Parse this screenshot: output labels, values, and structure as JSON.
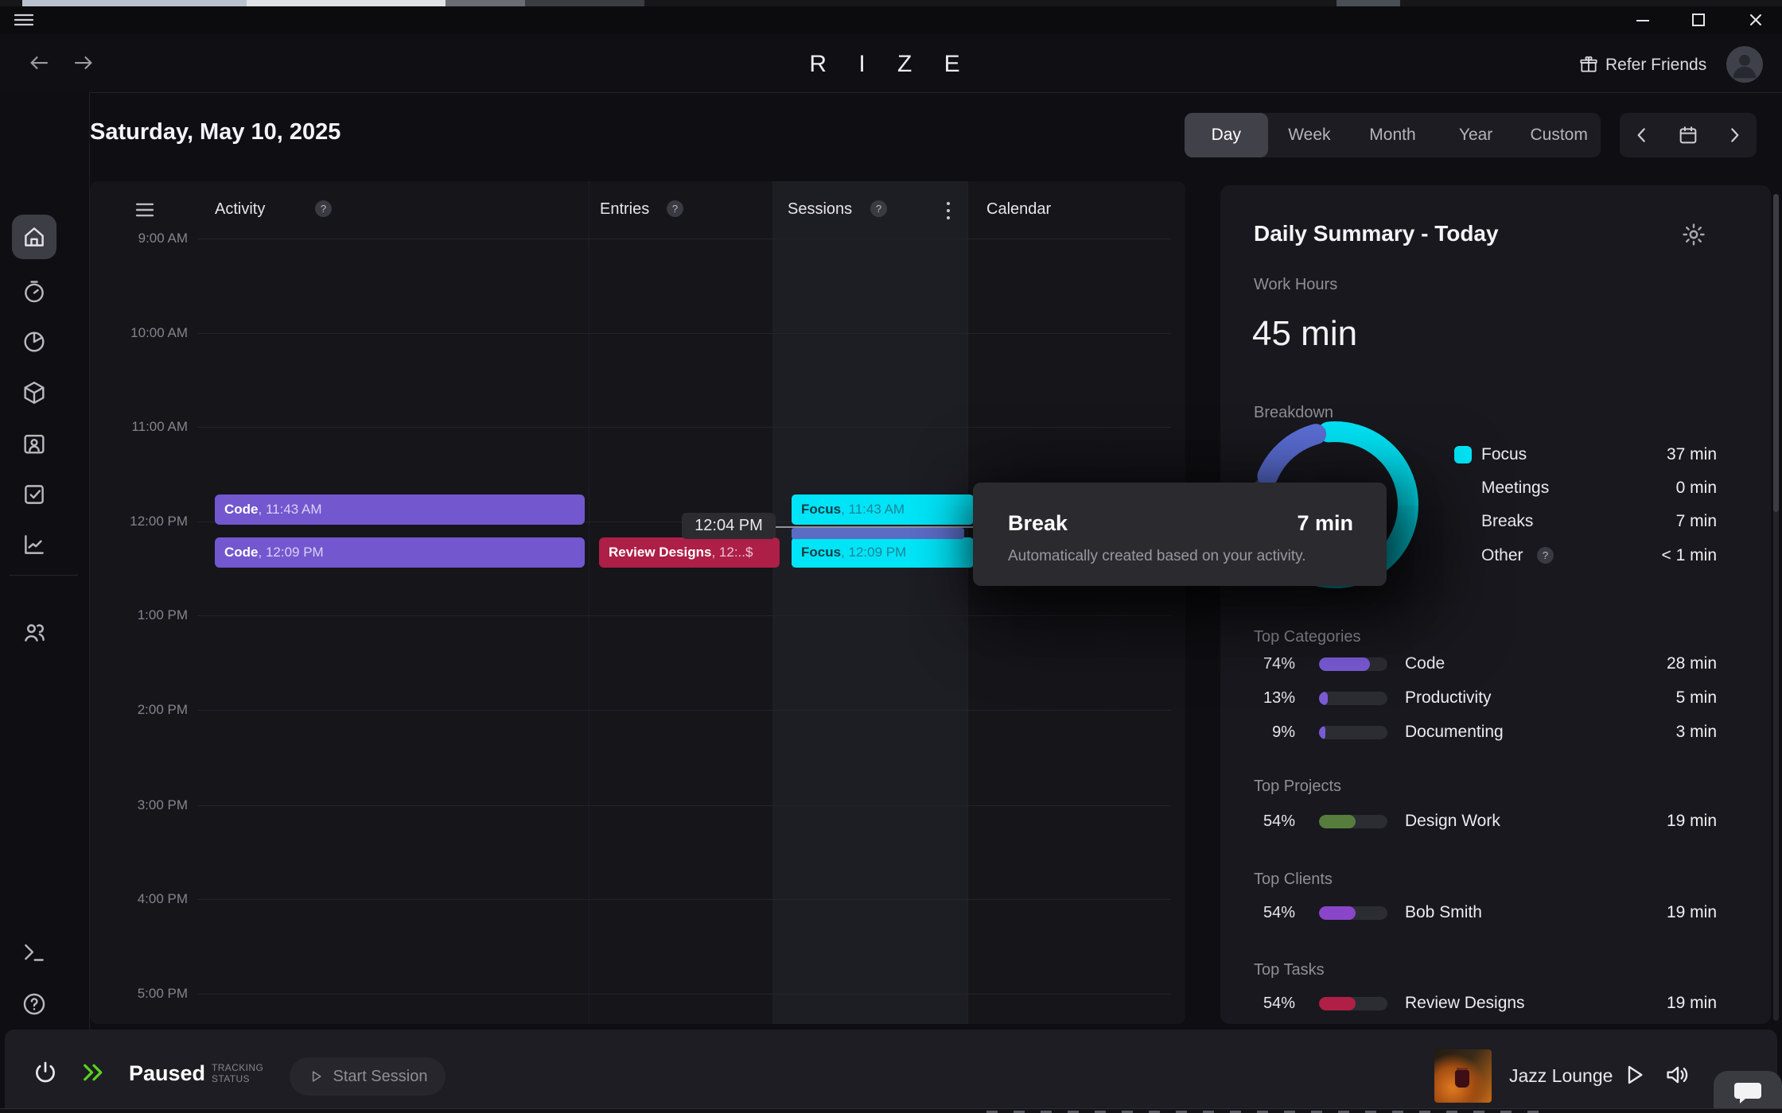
{
  "header": {
    "logo": "R I Z E",
    "refer_friends": "Refer Friends"
  },
  "toolbar": {
    "date": "Saturday, May 10, 2025",
    "tabs": [
      "Day",
      "Week",
      "Month",
      "Year",
      "Custom"
    ],
    "active_tab": "Day"
  },
  "sidebar": {
    "icons": [
      "home",
      "timer",
      "pie-chart",
      "cube",
      "contact-card",
      "tasks",
      "line-chart",
      "team",
      "terminal",
      "help",
      "settings",
      "shield"
    ],
    "active": "home"
  },
  "calendar": {
    "columns": [
      "Activity",
      "Entries",
      "Sessions",
      "Calendar"
    ],
    "times": [
      "9:00 AM",
      "10:00 AM",
      "11:00 AM",
      "12:00 PM",
      "1:00 PM",
      "2:00 PM",
      "3:00 PM",
      "4:00 PM",
      "5:00 PM"
    ],
    "events": [
      {
        "title": "Code",
        "time": "11:43 AM",
        "color": "#7257cf",
        "text_color": "#ffffff",
        "time_color": "#d9d2f4"
      },
      {
        "title": "Code",
        "time": "12:09 PM",
        "color": "#7257cf",
        "text_color": "#ffffff",
        "time_color": "#d9d2f4"
      },
      {
        "title": "Review Designs",
        "time": "12:..$",
        "color": "#ad1f47",
        "text_color": "#ffffff",
        "time_color": "#ecc4d2"
      },
      {
        "title": "Focus",
        "time": "11:43 AM",
        "color": "#00e4f7",
        "text_color": "#123c46",
        "time_color": "#1f8496"
      },
      {
        "title": "Focus",
        "time": "12:09 PM",
        "color": "#00e4f7",
        "text_color": "#123c46",
        "time_color": "#1f8496"
      }
    ],
    "hover_time": "12:04 PM",
    "break_session_color": "#5b6cc4"
  },
  "tooltip": {
    "title": "Break",
    "value": "7 min",
    "description": "Automatically created based on your activity."
  },
  "summary": {
    "title": "Daily Summary - Today",
    "work_hours_label": "Work Hours",
    "work_hours_value": "45 min",
    "breakdown_label": "Breakdown",
    "breakdown": [
      {
        "label": "Focus",
        "value": "37 min",
        "color": "#00e5f7"
      },
      {
        "label": "Meetings",
        "value": "0 min",
        "color": ""
      },
      {
        "label": "Breaks",
        "value": "7 min",
        "color": ""
      },
      {
        "label": "Other",
        "value": "< 1 min",
        "color": ""
      }
    ],
    "sections": [
      {
        "label": "Top Categories",
        "rows": [
          {
            "pct": "74%",
            "fill": 0.74,
            "color": "#7a5bd6",
            "label": "Code",
            "value": "28 min"
          },
          {
            "pct": "13%",
            "fill": 0.13,
            "color": "#7a5bd6",
            "label": "Productivity",
            "value": "5 min"
          },
          {
            "pct": "9%",
            "fill": 0.09,
            "color": "#7a5bd6",
            "label": "Documenting",
            "value": "3 min"
          }
        ]
      },
      {
        "label": "Top Projects",
        "rows": [
          {
            "pct": "54%",
            "fill": 0.54,
            "color": "#567d3c",
            "label": "Design Work",
            "value": "19 min"
          }
        ]
      },
      {
        "label": "Top Clients",
        "rows": [
          {
            "pct": "54%",
            "fill": 0.54,
            "color": "#8a46c9",
            "label": "Bob Smith",
            "value": "19 min"
          }
        ]
      },
      {
        "label": "Top Tasks",
        "rows": [
          {
            "pct": "54%",
            "fill": 0.54,
            "color": "#b01f45",
            "label": "Review Designs",
            "value": "19 min"
          }
        ]
      }
    ]
  },
  "statusbar": {
    "status": "Paused",
    "status_caption_line1": "TRACKING",
    "status_caption_line2": "STATUS",
    "start_button": "Start Session",
    "music_title": "Jazz Lounge"
  },
  "chart_data": {
    "type": "donut",
    "title": "Breakdown",
    "units": "minutes",
    "total_label": "45 min",
    "segments": [
      {
        "label": "Focus",
        "minutes": 37,
        "color": "#00e5f7"
      },
      {
        "label": "Other",
        "minutes": 0.5,
        "color": "#464650"
      },
      {
        "label": "Breaks",
        "minutes": 7,
        "color": "#5b6fd6"
      },
      {
        "label": "Meetings",
        "minutes": 0,
        "color": "#3a3a44"
      }
    ]
  }
}
